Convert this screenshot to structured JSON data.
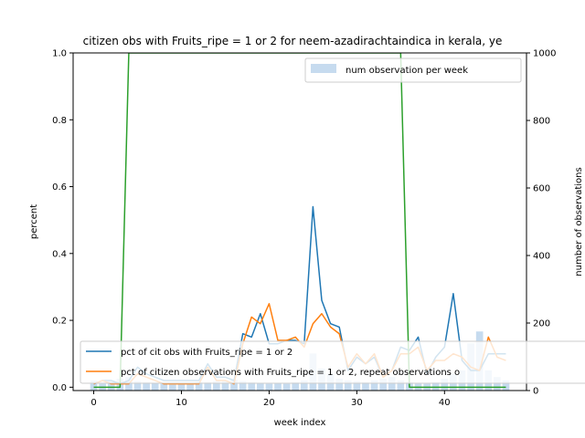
{
  "chart_data": {
    "type": "line",
    "title": "citizen obs with Fruits_ripe = 1 or 2 for neem-azadirachtaindica in kerala, ye",
    "xlabel": "week index",
    "ylabel": "percent",
    "ylabel_right": "number of observations",
    "xlim": [
      -2.35,
      49.35
    ],
    "ylim": [
      -0.01,
      1.0
    ],
    "ylim_right": [
      0,
      1000
    ],
    "xticks": [
      "0",
      "10",
      "20",
      "30",
      "40"
    ],
    "yticks": [
      "0.0",
      "0.2",
      "0.4",
      "0.6",
      "0.8",
      "1.0"
    ],
    "yticks_right": [
      "0",
      "200",
      "400",
      "600",
      "800",
      "1000"
    ],
    "x": [
      0,
      1,
      2,
      3,
      4,
      5,
      6,
      7,
      8,
      9,
      10,
      11,
      12,
      13,
      14,
      15,
      16,
      17,
      18,
      19,
      20,
      21,
      22,
      23,
      24,
      25,
      26,
      27,
      28,
      29,
      30,
      31,
      32,
      33,
      34,
      35,
      36,
      37,
      38,
      39,
      40,
      41,
      42,
      43,
      44,
      45,
      46,
      47
    ],
    "series": [
      {
        "name": "pct of cit obs with Fruits_ripe = 1 or 2",
        "color": "#1f77b4",
        "values": [
          0.01,
          0.02,
          0.02,
          0.01,
          0.02,
          0.06,
          0.04,
          0.03,
          0.02,
          0.02,
          0.02,
          0.02,
          0.02,
          0.07,
          0.03,
          0.03,
          0.02,
          0.16,
          0.15,
          0.22,
          0.13,
          0.13,
          0.14,
          0.14,
          0.13,
          0.54,
          0.26,
          0.19,
          0.18,
          0.05,
          0.09,
          0.07,
          0.09,
          0.03,
          0.05,
          0.12,
          0.11,
          0.15,
          0.04,
          0.09,
          0.12,
          0.28,
          0.08,
          0.05,
          0.05,
          0.1,
          0.1,
          0.1
        ]
      },
      {
        "name": "pct of citizen observations with Fruits_ripe = 1 or 2, repeat observations o",
        "color": "#ff7f0e",
        "values": [
          0.01,
          0.02,
          0.01,
          0.01,
          0.01,
          0.04,
          0.03,
          0.02,
          0.01,
          0.01,
          0.01,
          0.01,
          0.01,
          0.06,
          0.02,
          0.02,
          0.01,
          0.13,
          0.21,
          0.19,
          0.25,
          0.14,
          0.14,
          0.15,
          0.12,
          0.19,
          0.22,
          0.18,
          0.16,
          0.06,
          0.1,
          0.07,
          0.1,
          0.03,
          0.05,
          0.1,
          0.1,
          0.12,
          0.05,
          0.08,
          0.08,
          0.1,
          0.09,
          0.06,
          0.05,
          0.15,
          0.09,
          0.08
        ]
      },
      {
        "name": "",
        "color": "#2ca02c",
        "values": [
          0,
          0,
          0,
          0,
          1,
          1,
          1,
          1,
          1,
          1,
          1,
          1,
          1,
          1,
          1,
          1,
          1,
          1,
          1,
          1,
          1,
          1,
          1,
          1,
          1,
          1,
          1,
          1,
          1,
          1,
          1,
          1,
          1,
          1,
          1,
          1,
          0,
          0,
          0,
          0,
          0,
          0,
          0,
          0,
          0,
          0,
          0,
          0
        ]
      }
    ],
    "bars": {
      "name": "num observation per week",
      "color": "#c6dbef",
      "axis": "right",
      "values": [
        30,
        20,
        30,
        35,
        40,
        28,
        25,
        22,
        20,
        18,
        20,
        22,
        25,
        25,
        28,
        30,
        32,
        28,
        25,
        22,
        20,
        22,
        20,
        25,
        30,
        110,
        65,
        50,
        35,
        30,
        28,
        25,
        30,
        35,
        40,
        30,
        25,
        20,
        20,
        25,
        35,
        50,
        60,
        140,
        175,
        60,
        40,
        30
      ]
    },
    "legend_top": {
      "placement": "top-right",
      "entries": [
        "num observation per week"
      ]
    },
    "legend_bottom": {
      "placement": "lower-left"
    }
  }
}
